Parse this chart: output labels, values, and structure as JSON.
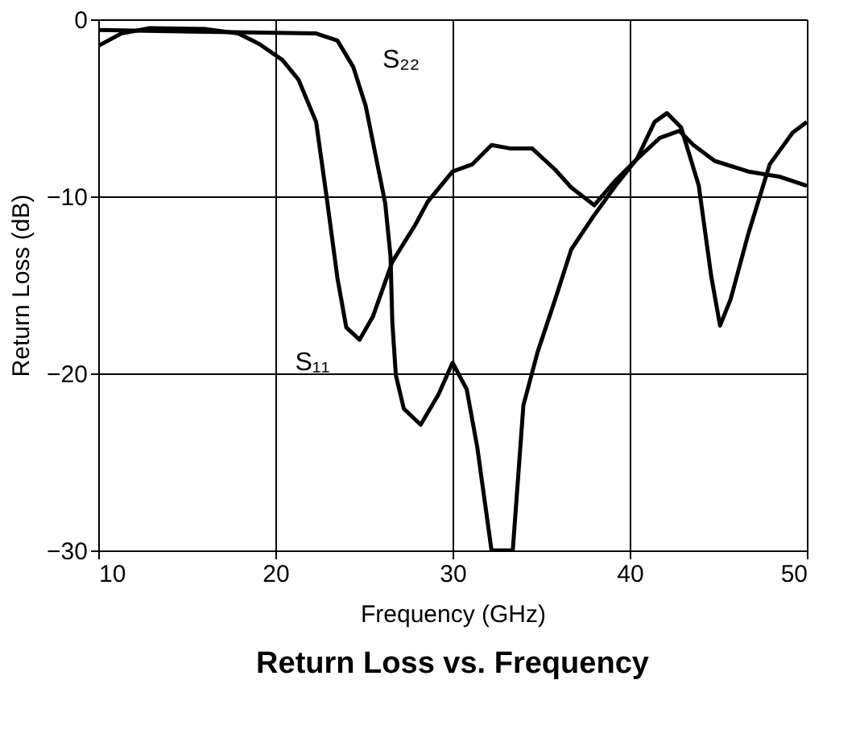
{
  "chart_data": {
    "type": "line",
    "title": "Return Loss vs. Frequency",
    "xlabel": "Frequency (GHz)",
    "ylabel": "Return Loss (dB)",
    "xlim": [
      10,
      50
    ],
    "xticks": [
      10,
      20,
      30,
      40,
      50
    ],
    "ylim": [
      -30,
      0
    ],
    "yticks": [
      -30,
      -20,
      -10,
      0
    ],
    "grid": true,
    "legend": false,
    "line_style": "solid",
    "marker": "none",
    "series": [
      {
        "name": "S₁₁",
        "color": "#000000",
        "x": [
          10,
          11.3,
          12.9,
          16,
          17.9,
          19.1,
          20.4,
          21.3,
          22.3,
          22.9,
          23.5,
          24,
          24.75,
          25.5,
          26.6,
          27.9,
          28.6,
          30,
          31.1,
          32.2,
          33.3,
          34.5,
          35.8,
          36.7,
          38,
          39.2,
          40.4,
          41.7,
          42.8,
          43.6,
          44.8,
          46.7,
          48.5,
          50
        ],
        "values": [
          -1.5,
          -0.8,
          -0.5,
          -0.55,
          -0.8,
          -1.4,
          -2.3,
          -3.4,
          -5.8,
          -10.1,
          -14.6,
          -17.4,
          -18.1,
          -16.8,
          -13.7,
          -11.6,
          -10.3,
          -8.6,
          -8.2,
          -7.1,
          -7.3,
          -7.3,
          -8.5,
          -9.5,
          -10.5,
          -9.1,
          -7.9,
          -6.7,
          -6.3,
          -7.1,
          -8,
          -8.6,
          -8.9,
          -9.4
        ]
      },
      {
        "name": "S₂₂",
        "color": "#000000",
        "x": [
          10,
          16,
          22.3,
          23.5,
          24.4,
          25.1,
          25.7,
          26.2,
          26.5,
          26.6,
          26.8,
          27.25,
          28.2,
          29.2,
          30,
          30.8,
          31.4,
          32.2,
          33.4,
          34,
          34.8,
          35.8,
          36.7,
          37.9,
          39.2,
          40.4,
          41.4,
          42.1,
          42.9,
          43.9,
          44.6,
          45.1,
          45.7,
          46.7,
          47.9,
          49.2,
          50
        ],
        "values": [
          -0.6,
          -0.7,
          -0.8,
          -1.2,
          -2.7,
          -4.9,
          -7.9,
          -10.4,
          -13.4,
          -17.1,
          -20.1,
          -22,
          -22.9,
          -21.2,
          -19.4,
          -20.9,
          -24.2,
          -30,
          -30,
          -21.8,
          -18.8,
          -15.8,
          -13,
          -11.2,
          -9.4,
          -7.9,
          -5.8,
          -5.3,
          -6.1,
          -9.4,
          -14.5,
          -17.3,
          -15.8,
          -12.1,
          -8.2,
          -6.4,
          -5.8
        ]
      }
    ]
  }
}
